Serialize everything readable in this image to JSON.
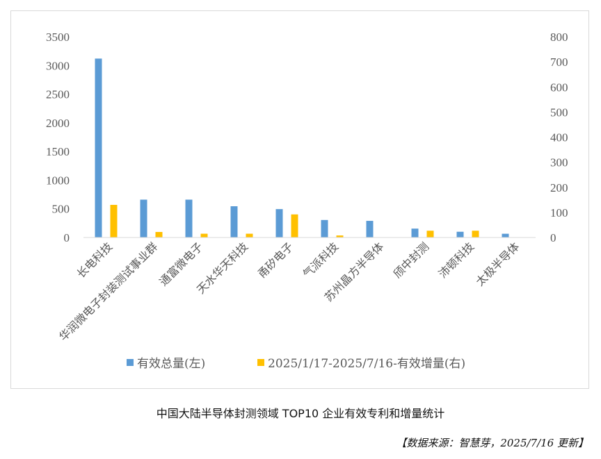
{
  "caption": "中国大陆半导体封测领域 TOP10 企业有效专利和增量统计",
  "source": "【数据来源：智慧芽，2025/7/16 更新】",
  "chart_data": {
    "type": "bar",
    "categories": [
      "长电科技",
      "华润微电子封装测试事业群",
      "通富微电子",
      "天水华天科技",
      "甬矽电子",
      "气派科技",
      "苏州晶方半导体",
      "颀中封测",
      "沛顿科技",
      "太极半导体"
    ],
    "series": [
      {
        "name": "有效总量(左)",
        "axis": "left",
        "color": "#5B9BD5",
        "values": [
          3120,
          660,
          660,
          545,
          495,
          305,
          290,
          155,
          100,
          65
        ]
      },
      {
        "name": "2025/1/17-2025/7/16-有效增量(右)",
        "axis": "right",
        "color": "#FFC000",
        "values": [
          130,
          22,
          15,
          15,
          92,
          8,
          0,
          27,
          27,
          0
        ]
      }
    ],
    "y_left": {
      "min": 0,
      "max": 3500,
      "ticks": [
        "0",
        "500",
        "1000",
        "1500",
        "2000",
        "2500",
        "3000",
        "3500"
      ]
    },
    "y_right": {
      "min": 0,
      "max": 800,
      "ticks": [
        "0",
        "100",
        "200",
        "300",
        "400",
        "500",
        "600",
        "700",
        "800"
      ]
    },
    "legend_position": "bottom",
    "grid": false
  }
}
